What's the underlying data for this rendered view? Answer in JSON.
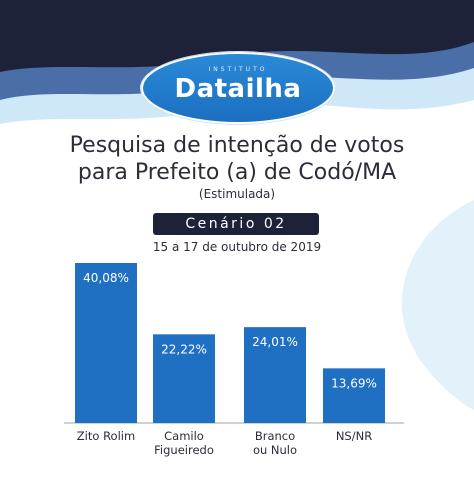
{
  "logo": {
    "top_text": "INSTITUTO",
    "name": "Datailha"
  },
  "title_line1": "Pesquisa de intenção de votos",
  "title_line2": "para Prefeito (a) de Codó/MA",
  "subtitle": "(Estimulada)",
  "scenario": "Cenário 02",
  "date": "15 a 17 de outubro de 2019",
  "colors": {
    "bar": "#1f6fc2",
    "dark": "#1d2238",
    "wave": "#cfe8f7",
    "text": "#2d2d3a"
  },
  "chart_data": {
    "type": "bar",
    "categories": [
      [
        "Zito Rolim"
      ],
      [
        "Camilo",
        "Figueiredo"
      ],
      [
        "Branco",
        "ou Nulo"
      ],
      [
        "NS/NR"
      ]
    ],
    "values": [
      40.08,
      22.22,
      24.01,
      13.69
    ],
    "value_labels": [
      "40,08%",
      "22,22%",
      "24,01%",
      "13,69%"
    ],
    "ylim": [
      0,
      40.08
    ],
    "grid": false,
    "legend": "none"
  }
}
